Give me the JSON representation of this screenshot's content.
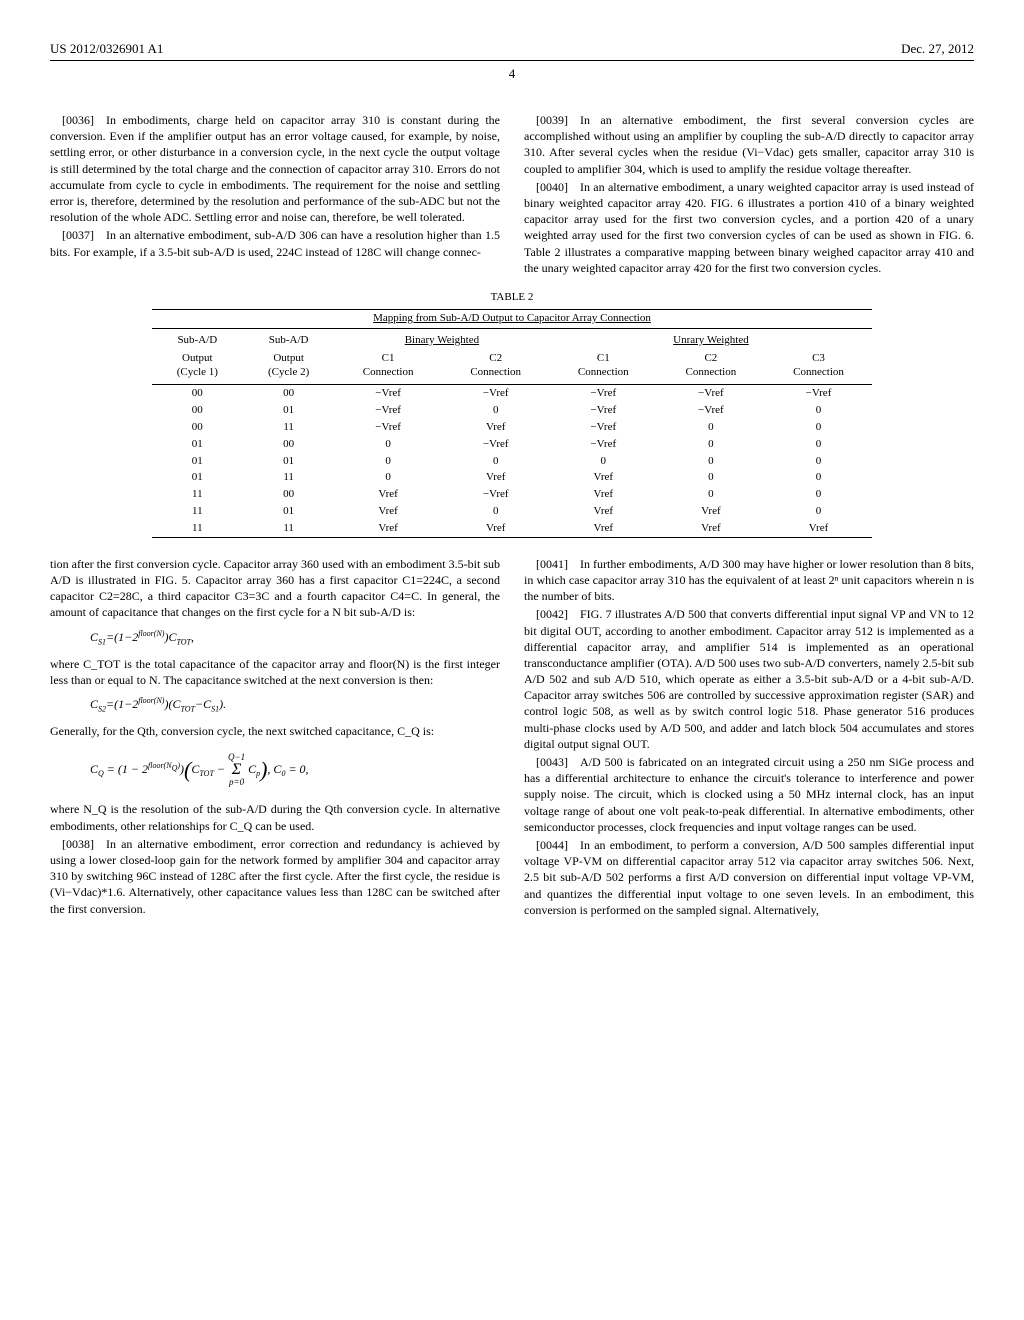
{
  "header": {
    "pub_number": "US 2012/0326901 A1",
    "pub_date": "Dec. 27, 2012"
  },
  "page_number": "4",
  "paragraphs": {
    "p36": "[0036] In embodiments, charge held on capacitor array 310 is constant during the conversion. Even if the amplifier output has an error voltage caused, for example, by noise, settling error, or other disturbance in a conversion cycle, in the next cycle the output voltage is still determined by the total charge and the connection of capacitor array 310. Errors do not accumulate from cycle to cycle in embodiments. The requirement for the noise and settling error is, therefore, determined by the resolution and performance of the sub-ADC but not the resolution of the whole ADC. Settling error and noise can, therefore, be well tolerated.",
    "p37a": "[0037] In an alternative embodiment, sub-A/D 306 can have a resolution higher than 1.5 bits. For example, if a 3.5-bit sub-A/D is used, 224C instead of 128C will change connec-",
    "p37b": "tion after the first conversion cycle. Capacitor array 360 used with an embodiment 3.5-bit sub A/D is illustrated in FIG. 5. Capacitor array 360 has a first capacitor C1=224C, a second capacitor C2=28C, a third capacitor C3=3C and a fourth capacitor C4=C. In general, the amount of capacitance that changes on the first cycle for a N bit sub-A/D is:",
    "p37c": "where C_TOT is the total capacitance of the capacitor array and floor(N) is the first integer less than or equal to N. The capacitance switched at the next conversion is then:",
    "p37d": "Generally, for the Qth, conversion cycle, the next switched capacitance, C_Q is:",
    "p37e": "where N_Q is the resolution of the sub-A/D during the Qth conversion cycle. In alternative embodiments, other relationships for C_Q can be used.",
    "p38": "[0038] In an alternative embodiment, error correction and redundancy is achieved by using a lower closed-loop gain for the network formed by amplifier 304 and capacitor array 310 by switching 96C instead of 128C after the first cycle. After the first cycle, the residue is (Vi−Vdac)*1.6. Alternatively, other capacitance values less than 128C can be switched after the first conversion.",
    "p39": "[0039] In an alternative embodiment, the first several conversion cycles are accomplished without using an amplifier by coupling the sub-A/D directly to capacitor array 310. After several cycles when the residue (Vi−Vdac) gets smaller, capacitor array 310 is coupled to amplifier 304, which is used to amplify the residue voltage thereafter.",
    "p40": "[0040] In an alternative embodiment, a unary weighted capacitor array is used instead of binary weighted capacitor array 420. FIG. 6 illustrates a portion 410 of a binary weighted capacitor array used for the first two conversion cycles, and a portion 420 of a unary weighted array used for the first two conversion cycles of can be used as shown in FIG. 6. Table 2 illustrates a comparative mapping between binary weighed capacitor array 410 and the unary weighted capacitor array 420 for the first two conversion cycles.",
    "p41": "[0041] In further embodiments, A/D 300 may have higher or lower resolution than 8 bits, in which case capacitor array 310 has the equivalent of at least 2ⁿ unit capacitors wherein n is the number of bits.",
    "p42": "[0042] FIG. 7 illustrates A/D 500 that converts differential input signal VP and VN to 12 bit digital OUT, according to another embodiment. Capacitor array 512 is implemented as a differential capacitor array, and amplifier 514 is implemented as an operational transconductance amplifier (OTA). A/D 500 uses two sub-A/D converters, namely 2.5-bit sub A/D 502 and sub A/D 510, which operate as either a 3.5-bit sub-A/D or a 4-bit sub-A/D. Capacitor array switches 506 are controlled by successive approximation register (SAR) and control logic 508, as well as by switch control logic 518. Phase generator 516 produces multi-phase clocks used by A/D 500, and adder and latch block 504 accumulates and stores digital output signal OUT.",
    "p43": "[0043] A/D 500 is fabricated on an integrated circuit using a 250 nm SiGe process and has a differential architecture to enhance the circuit's tolerance to interference and power supply noise. The circuit, which is clocked using a 50 MHz internal clock, has an input voltage range of about one volt peak-to-peak differential. In alternative embodiments, other semiconductor processes, clock frequencies and input voltage ranges can be used.",
    "p44": "[0044] In an embodiment, to perform a conversion, A/D 500 samples differential input voltage VP-VM on differential capacitor array 512 via capacitor array switches 506. Next, 2.5 bit sub-A/D 502 performs a first A/D conversion on differential input voltage VP-VM, and quantizes the differential input voltage to one seven levels. In an embodiment, this conversion is performed on the sampled signal. Alternatively,"
  },
  "formulas": {
    "f1": "C_{S1}=(1−2^{floor(N)})C_{TOT},",
    "f2": "C_{S2}=(1−2^{floor(N)})(C_{TOT}−C_{S1}).",
    "f3": "C_Q = (1 − 2^{floor(N_Q)})(C_{TOT} − Σ_{p=0}^{Q−1} C_p), C_0 = 0,"
  },
  "table": {
    "label": "TABLE 2",
    "title": "Mapping from Sub-A/D Output to Capacitor Array Connection",
    "group_headers": [
      "Sub-A/D",
      "Sub-A/D",
      "Binary Weighted",
      "Unrary Weighted"
    ],
    "sub_headers": [
      "Output (Cycle 1)",
      "Output (Cycle 2)",
      "C1 Connection",
      "C2 Connection",
      "C1 Connection",
      "C2 Connection",
      "C3 Connection"
    ],
    "rows": [
      [
        "00",
        "00",
        "−Vref",
        "−Vref",
        "−Vref",
        "−Vref",
        "−Vref"
      ],
      [
        "00",
        "01",
        "−Vref",
        "0",
        "−Vref",
        "−Vref",
        "0"
      ],
      [
        "00",
        "11",
        "−Vref",
        "Vref",
        "−Vref",
        "0",
        "0"
      ],
      [
        "01",
        "00",
        "0",
        "−Vref",
        "−Vref",
        "0",
        "0"
      ],
      [
        "01",
        "01",
        "0",
        "0",
        "0",
        "0",
        "0"
      ],
      [
        "01",
        "11",
        "0",
        "Vref",
        "Vref",
        "0",
        "0"
      ],
      [
        "11",
        "00",
        "Vref",
        "−Vref",
        "Vref",
        "0",
        "0"
      ],
      [
        "11",
        "01",
        "Vref",
        "0",
        "Vref",
        "Vref",
        "0"
      ],
      [
        "11",
        "11",
        "Vref",
        "Vref",
        "Vref",
        "Vref",
        "Vref"
      ]
    ]
  }
}
